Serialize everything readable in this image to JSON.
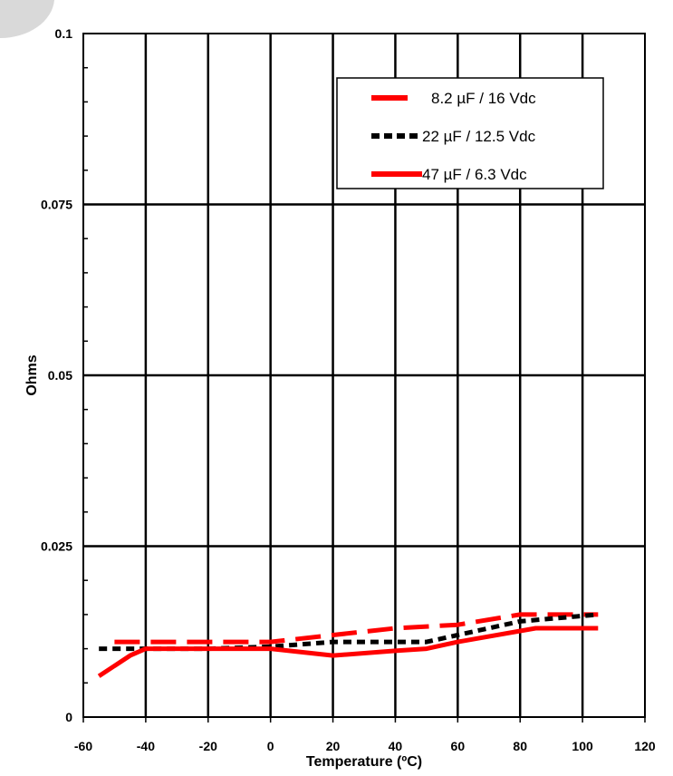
{
  "chart_data": {
    "type": "line",
    "title": "",
    "xlabel": "Temperature (ºC)",
    "ylabel": "Ohms",
    "xlim": [
      -60,
      120
    ],
    "ylim": [
      0,
      0.1
    ],
    "x_ticks": [
      -60,
      -40,
      -20,
      0,
      20,
      40,
      60,
      80,
      100,
      120
    ],
    "x_tick_labels": [
      "-60",
      "-40",
      "-20",
      "0",
      "20",
      "40",
      "60",
      "80",
      "100",
      "120"
    ],
    "y_ticks": [
      0,
      0.025,
      0.05,
      0.075,
      0.1
    ],
    "y_tick_labels": [
      "0",
      "0.025",
      "0.05",
      "0.075",
      "0.1"
    ],
    "grid": true,
    "legend_position": "top-right",
    "series": [
      {
        "name": "8.2 µF / 16 Vdc",
        "color": "#ff0000",
        "style": "long-dash",
        "points": [
          [
            -50,
            0.011
          ],
          [
            -40,
            0.011
          ],
          [
            -20,
            0.011
          ],
          [
            0,
            0.011
          ],
          [
            20,
            0.012
          ],
          [
            40,
            0.013
          ],
          [
            60,
            0.0135
          ],
          [
            80,
            0.015
          ],
          [
            105,
            0.015
          ]
        ]
      },
      {
        "name": "22 µF / 12.5 Vdc",
        "color": "#000000",
        "style": "short-dash",
        "points": [
          [
            -55,
            0.01
          ],
          [
            -40,
            0.01
          ],
          [
            -20,
            0.01
          ],
          [
            0,
            0.0103
          ],
          [
            20,
            0.011
          ],
          [
            40,
            0.011
          ],
          [
            50,
            0.011
          ],
          [
            60,
            0.012
          ],
          [
            80,
            0.014
          ],
          [
            105,
            0.015
          ]
        ]
      },
      {
        "name": "47 µF / 6.3 Vdc",
        "color": "#ff0000",
        "style": "solid",
        "points": [
          [
            -55,
            0.006
          ],
          [
            -45,
            0.009
          ],
          [
            -40,
            0.01
          ],
          [
            -20,
            0.01
          ],
          [
            0,
            0.01
          ],
          [
            20,
            0.009
          ],
          [
            40,
            0.0097
          ],
          [
            50,
            0.01
          ],
          [
            60,
            0.011
          ],
          [
            85,
            0.013
          ],
          [
            105,
            0.013
          ]
        ]
      }
    ]
  }
}
